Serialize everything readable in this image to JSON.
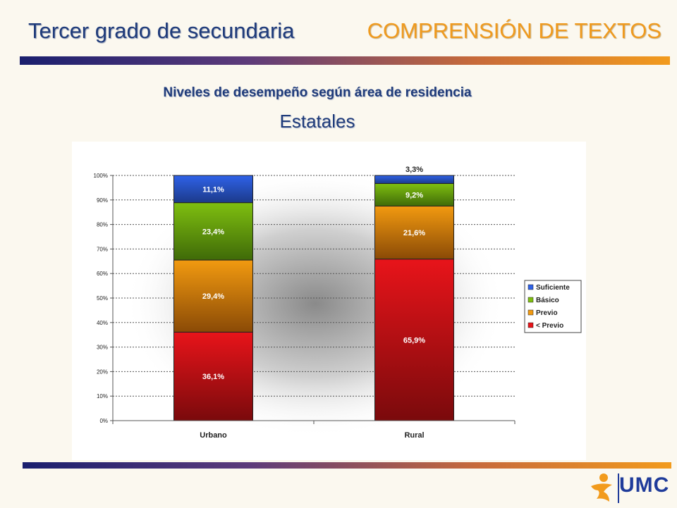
{
  "header": {
    "left_title": "Tercer grado de secundaria",
    "right_title": "COMPRENSIÓN DE TEXTOS"
  },
  "subtitle": "Niveles de desempeño según área de residencia",
  "subtitle2": "Estatales",
  "logo": {
    "text": "UMC"
  },
  "colors": {
    "header_blue": "#1f3b7a",
    "header_orange": "#ef9a1e",
    "suficiente": "#2f62e8",
    "basico": "#7fbf10",
    "previo": "#f29a10",
    "menos_previo": "#e8141a"
  },
  "chart_data": {
    "type": "bar",
    "stacked": true,
    "categories": [
      "Urbano",
      "Rural"
    ],
    "ylim": [
      0,
      100
    ],
    "yticks": [
      "0%",
      "10%",
      "20%",
      "30%",
      "40%",
      "50%",
      "60%",
      "70%",
      "80%",
      "90%",
      "100%"
    ],
    "grid": "horizontal dotted",
    "legend_position": "right",
    "series": [
      {
        "name": "< Previo",
        "values": [
          36.1,
          65.9
        ],
        "labels": [
          "36,1%",
          "65,9%"
        ],
        "color": "#e8141a"
      },
      {
        "name": "Previo",
        "values": [
          29.4,
          21.6
        ],
        "labels": [
          "29,4%",
          "21,6%"
        ],
        "color": "#f29a10"
      },
      {
        "name": "Básico",
        "values": [
          23.4,
          9.2
        ],
        "labels": [
          "23,4%",
          "9,2%"
        ],
        "color": "#7fbf10"
      },
      {
        "name": "Suficiente",
        "values": [
          11.1,
          3.3
        ],
        "labels": [
          "11,1%",
          "3,3%"
        ],
        "color": "#2f62e8"
      }
    ],
    "legend_order": [
      "Suficiente",
      "Básico",
      "Previo",
      "< Previo"
    ]
  }
}
